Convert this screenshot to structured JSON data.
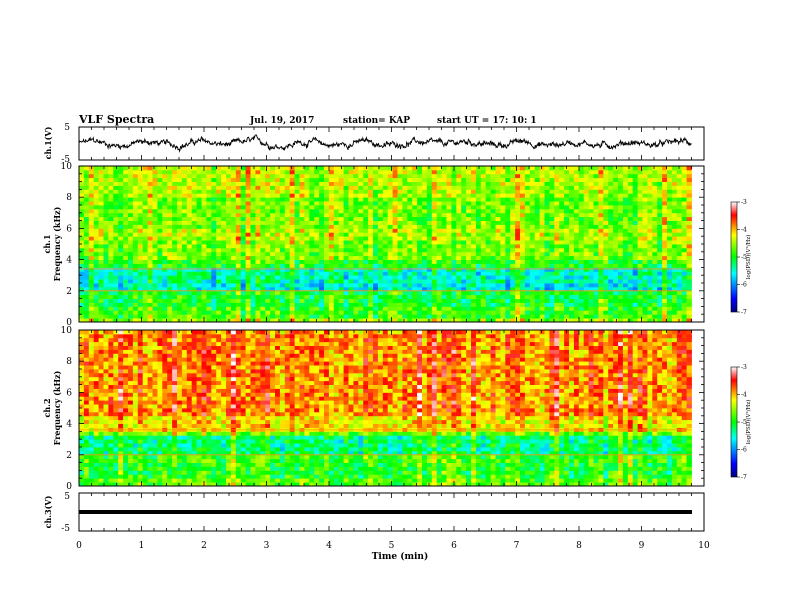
{
  "header": {
    "title": "VLF Spectra",
    "date": "Jul. 19, 2017",
    "station": "station= KAP",
    "start": "start  UT =   17: 10: 1"
  },
  "colors": {
    "colormap": [
      "#000080",
      "#0000ff",
      "#00ffff",
      "#00ff00",
      "#ffff00",
      "#ff0000",
      "#ffffff"
    ],
    "trace": "#000000"
  },
  "chart_data": [
    {
      "type": "line",
      "panel": "ch.1 waveform",
      "ylabel": "ch.1(V)",
      "ylim": [
        -5,
        5
      ],
      "yticks": [
        "5",
        "-5"
      ],
      "xlim": [
        0,
        10
      ],
      "description_values": "voltage trace fluctuating roughly between -2 and 2 V over 0–9.8 min"
    },
    {
      "type": "heatmap",
      "panel": "ch.1 spectrogram",
      "ylabel": "ch.1 Frequency (kHz)",
      "ylim": [
        0,
        10
      ],
      "yticks": [
        "0",
        "2",
        "4",
        "6",
        "8",
        "10"
      ],
      "xlim": [
        0,
        10
      ],
      "data_extent_min": 9.8,
      "colorbar": {
        "label": "log(PSD)(V²/Hz)",
        "range": [
          -7,
          -3
        ],
        "ticks": [
          "-3",
          "-4",
          "-5",
          "-6",
          "-7"
        ]
      },
      "bands_khz": [
        {
          "from": 0,
          "to": 0.3,
          "log_psd": -4.6
        },
        {
          "from": 0.3,
          "to": 1.0,
          "log_psd": -4.9
        },
        {
          "from": 1.0,
          "to": 2.0,
          "log_psd": -5.1
        },
        {
          "from": 2.0,
          "to": 2.6,
          "log_psd": -5.6
        },
        {
          "from": 2.6,
          "to": 3.4,
          "log_psd": -5.5
        },
        {
          "from": 3.4,
          "to": 4.0,
          "log_psd": -5.0
        },
        {
          "from": 4.0,
          "to": 5.3,
          "log_psd": -4.7
        },
        {
          "from": 5.3,
          "to": 6.0,
          "log_psd": -4.5
        },
        {
          "from": 6.0,
          "to": 8.0,
          "log_psd": -4.7
        },
        {
          "from": 8.0,
          "to": 10.0,
          "log_psd": -4.5
        }
      ]
    },
    {
      "type": "heatmap",
      "panel": "ch.2 spectrogram",
      "ylabel": "ch.2 Frequency (kHz)",
      "ylim": [
        0,
        10
      ],
      "yticks": [
        "0",
        "2",
        "4",
        "6",
        "8",
        "10"
      ],
      "xlim": [
        0,
        10
      ],
      "data_extent_min": 9.8,
      "colorbar": {
        "label": "log(PSD)(V²/Hz)",
        "range": [
          -7,
          -3
        ],
        "ticks": [
          "-3",
          "-4",
          "-5",
          "-6",
          "-7"
        ]
      },
      "bands_khz": [
        {
          "from": 0,
          "to": 0.4,
          "log_psd": -4.8
        },
        {
          "from": 0.4,
          "to": 1.5,
          "log_psd": -5.0
        },
        {
          "from": 1.5,
          "to": 2.0,
          "log_psd": -4.9
        },
        {
          "from": 2.0,
          "to": 3.3,
          "log_psd": -5.3
        },
        {
          "from": 3.3,
          "to": 3.6,
          "log_psd": -4.7
        },
        {
          "from": 3.6,
          "to": 4.5,
          "log_psd": -4.2
        },
        {
          "from": 4.5,
          "to": 10.0,
          "log_psd": -3.9
        }
      ]
    },
    {
      "type": "line",
      "panel": "ch.3 waveform",
      "ylabel": "ch.3(V)",
      "ylim": [
        -5,
        5
      ],
      "yticks": [
        "5",
        "-5"
      ],
      "xlim": [
        0,
        10
      ],
      "constant_value_v": 0,
      "xlabel": "Time (min)",
      "xticks": [
        "0",
        "1",
        "2",
        "3",
        "4",
        "5",
        "6",
        "7",
        "8",
        "9",
        "10"
      ]
    }
  ]
}
